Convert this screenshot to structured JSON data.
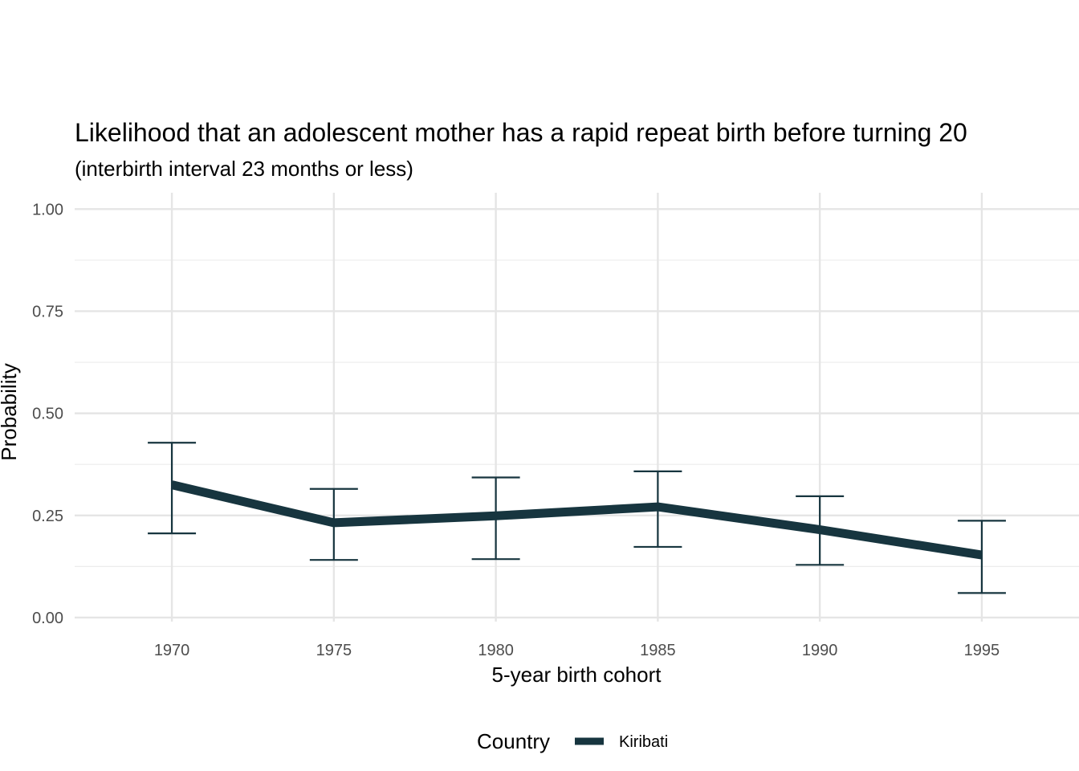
{
  "chart_data": {
    "type": "line",
    "title": "Likelihood that an adolescent mother has a rapid repeat birth before turning 20",
    "subtitle": "(interbirth interval 23 months or less)",
    "xlabel": "5-year birth cohort",
    "ylabel": "Probability",
    "x": [
      1970,
      1975,
      1980,
      1985,
      1990,
      1995
    ],
    "x_tick_labels": [
      "1970",
      "1975",
      "1980",
      "1985",
      "1990",
      "1995"
    ],
    "xlim": [
      1967,
      1998
    ],
    "ylim": [
      -0.01,
      1.04
    ],
    "y_ticks": [
      0,
      0.25,
      0.5,
      0.75,
      1.0
    ],
    "y_tick_labels": [
      "0.00",
      "0.25",
      "0.50",
      "0.75",
      "1.00"
    ],
    "series": [
      {
        "name": "Kiribati",
        "color": "#17353f",
        "values": [
          0.325,
          0.232,
          0.249,
          0.271,
          0.215,
          0.153
        ],
        "lower": [
          0.206,
          0.141,
          0.143,
          0.173,
          0.129,
          0.06
        ],
        "upper": [
          0.428,
          0.315,
          0.343,
          0.358,
          0.297,
          0.237
        ]
      }
    ],
    "grid": true,
    "legend": {
      "title": "Country",
      "position": "bottom"
    }
  }
}
